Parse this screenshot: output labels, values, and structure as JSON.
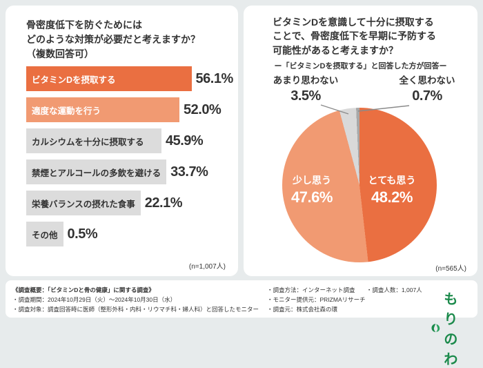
{
  "colors": {
    "accent_orange": "#ea6f41",
    "accent_orange_light": "#f19a72",
    "neutral_gray": "#dcdcdc",
    "brand_green": "#1b8a4b",
    "background": "#e7ebec"
  },
  "left_card": {
    "title_lines": [
      "骨密度低下を防ぐためには",
      "どのような対策が必要だと考えますか？",
      "（複数回答可）"
    ]
  },
  "right_card": {
    "title_lines": [
      "ビタミンDを意識して十分に摂取する",
      "ことで、骨密度低下を早期に予防する",
      "可能性があると考えますか？"
    ]
  },
  "chart_data": [
    {
      "type": "bar",
      "orientation": "horizontal",
      "title": "骨密度低下を防ぐためにはどのような対策が必要だと考えますか？（複数回答可）",
      "categories": [
        "ビタミンDを摂取する",
        "適度な運動を行う",
        "カルシウムを十分に摂取する",
        "禁煙とアルコールの多飲を避ける",
        "栄養バランスの摂れた食事",
        "その他"
      ],
      "values": [
        56.1,
        52.0,
        45.9,
        33.7,
        22.1,
        0.5
      ],
      "value_labels": [
        "56.1%",
        "52.0%",
        "45.9%",
        "33.7%",
        "22.1%",
        "0.5%"
      ],
      "colors": [
        "#ea6f41",
        "#f19a72",
        "#dcdcdc",
        "#dcdcdc",
        "#dcdcdc",
        "#dcdcdc"
      ],
      "label_colors": [
        "#ffffff",
        "#ffffff",
        "#333333",
        "#333333",
        "#333333",
        "#333333"
      ],
      "xlim": [
        0,
        60
      ],
      "grid": false,
      "n": "(n=1,007人)"
    },
    {
      "type": "pie",
      "title": "ビタミンDを意識して十分に摂取することで、骨密度低下を早期に予防する可能性があると考えますか？",
      "subtitle": "ー「ビタミンDを摂取する」と回答した方が回答ー",
      "start_angle_deg": 0,
      "direction": "clockwise",
      "slices": [
        {
          "label": "とても思う",
          "value": 48.2,
          "display": "48.2%",
          "color": "#ea6f41",
          "label_placement": "inside"
        },
        {
          "label": "少し思う",
          "value": 47.6,
          "display": "47.6%",
          "color": "#f19a72",
          "label_placement": "inside"
        },
        {
          "label": "あまり思わない",
          "value": 3.5,
          "display": "3.5%",
          "color": "#d9d9d9",
          "label_placement": "outside"
        },
        {
          "label": "全く思わない",
          "value": 0.7,
          "display": "0.7%",
          "color": "#a8a8a8",
          "label_placement": "outside"
        }
      ],
      "n": "(n=565人)"
    }
  ],
  "footer": {
    "heading": "《調査概要：「ビタミンDと骨の健康」に関する調査》",
    "left_lines": [
      "・調査期間：2024年10月29日（火）〜2024年10月30日（水）",
      "・調査対象：調査回答時に医師（整形外科・内科・リウマチ科・婦人科）と回答したモニター"
    ],
    "right_lines": [
      "・調査方法：インターネット調査",
      "・調査人数：1,007人",
      "・モニター提供元：PRIZMAリサーチ",
      "・調査元：株式会社森の環"
    ],
    "logo_text": "もりのわ"
  }
}
